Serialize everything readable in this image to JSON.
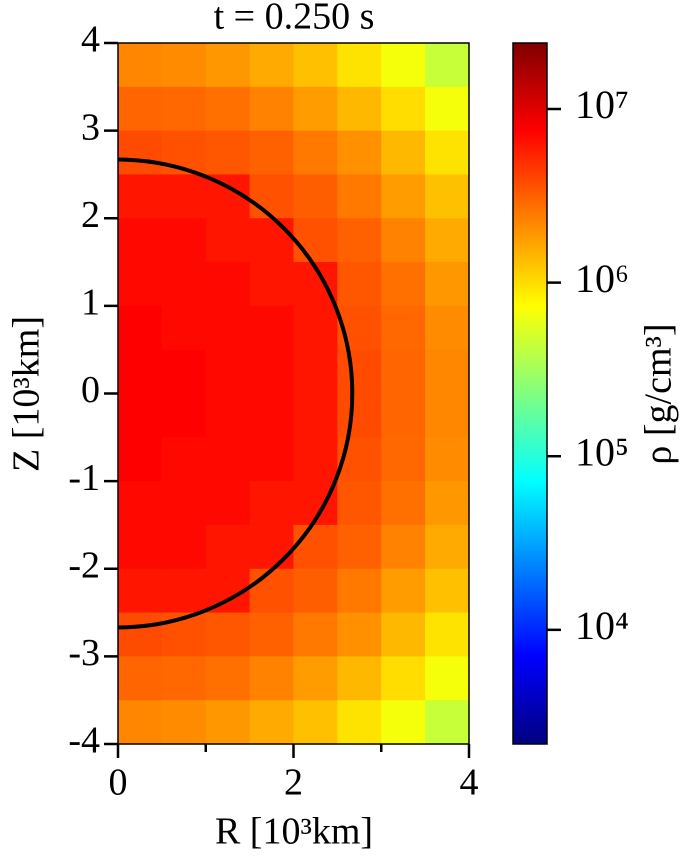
{
  "chart_data": {
    "type": "heatmap",
    "title": "t = 0.250 s",
    "x_label": "R [10³km]",
    "y_label": "Z [10³km]",
    "colorbar_label": "ρ [g/cm³]",
    "xbins": [
      0,
      0.5,
      1,
      1.5,
      2,
      2.5,
      3,
      3.5,
      4
    ],
    "ybins": [
      4,
      3.5,
      3,
      2.5,
      2,
      1.5,
      1,
      0.5,
      0,
      -0.5,
      -1,
      -1.5,
      -2,
      -2.5,
      -3,
      -3.5,
      -4
    ],
    "values": [
      [
        2200000,
        2100000,
        1900000,
        1600000,
        1300000,
        950000,
        670000,
        440000
      ],
      [
        3000000,
        2900000,
        2700000,
        2300000,
        1800000,
        1400000,
        1000000,
        670000
      ],
      [
        3800000,
        3600000,
        3400000,
        3100000,
        2500000,
        2000000,
        1400000,
        950000
      ],
      [
        6200000,
        6200000,
        6200000,
        3600000,
        3200000,
        2500000,
        1800000,
        1300000
      ],
      [
        7000000,
        7000000,
        6200000,
        6200000,
        3600000,
        3100000,
        2300000,
        1600000
      ],
      [
        7000000,
        7000000,
        7000000,
        6200000,
        6200000,
        3400000,
        2700000,
        1900000
      ],
      [
        7500000,
        7000000,
        7000000,
        7000000,
        6200000,
        3600000,
        2900000,
        2100000
      ],
      [
        7500000,
        7500000,
        7000000,
        7000000,
        6200000,
        3800000,
        3000000,
        2200000
      ],
      [
        7500000,
        7500000,
        7000000,
        7000000,
        6200000,
        3800000,
        3000000,
        2200000
      ],
      [
        7500000,
        7000000,
        7000000,
        7000000,
        6200000,
        3600000,
        2900000,
        2100000
      ],
      [
        7000000,
        7000000,
        7000000,
        6200000,
        6200000,
        3400000,
        2700000,
        1900000
      ],
      [
        7000000,
        7000000,
        6200000,
        6200000,
        3600000,
        3100000,
        2300000,
        1600000
      ],
      [
        6200000,
        6200000,
        6200000,
        3600000,
        3200000,
        2500000,
        1800000,
        1300000
      ],
      [
        3800000,
        3600000,
        3400000,
        3100000,
        2500000,
        2000000,
        1400000,
        950000
      ],
      [
        3000000,
        2900000,
        2700000,
        2300000,
        1800000,
        1400000,
        1000000,
        670000
      ],
      [
        2200000,
        2100000,
        1900000,
        1600000,
        1300000,
        950000,
        670000,
        440000
      ]
    ],
    "contour": {
      "radius": 2.67,
      "color": "#000000"
    },
    "colormap": "jet",
    "cscale": "log",
    "clim": [
      2200,
      24000000
    ],
    "cticks": [
      {
        "value": 10000,
        "label": "10⁴"
      },
      {
        "value": 100000,
        "label": "10⁵"
      },
      {
        "value": 1000000,
        "label": "10⁶"
      },
      {
        "value": 10000000,
        "label": "10⁷"
      }
    ],
    "xlim": [
      0,
      4
    ],
    "xticks": [
      0,
      2,
      4
    ],
    "xticks_minor": [
      1,
      3
    ],
    "ylim": [
      -4,
      4
    ],
    "yticks": [
      -4,
      -3,
      -2,
      -1,
      0,
      1,
      2,
      3,
      4
    ]
  }
}
